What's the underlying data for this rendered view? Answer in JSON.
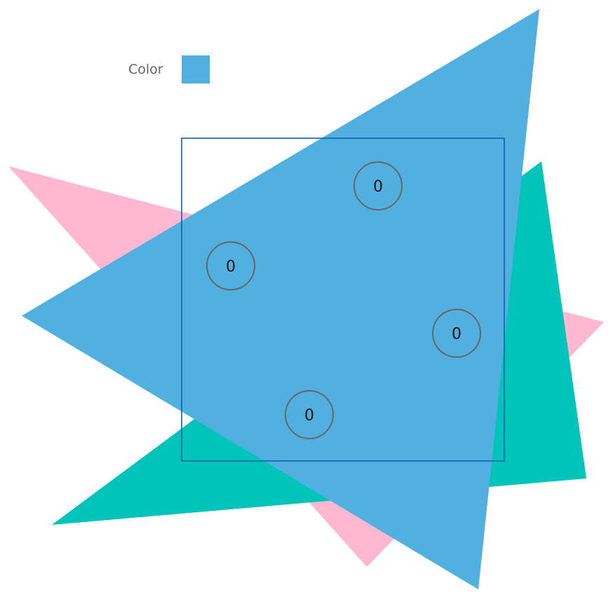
{
  "legend": {
    "label": "Color",
    "swatch_color": "#52b0e0"
  },
  "shapes": {
    "pink_triangle_color": "#ffb8cf",
    "teal_triangle_color": "#00c4ba",
    "blue_triangle_color": "#52b0e0",
    "selection_box_color": "#0f5fae"
  },
  "counters": [
    {
      "name": "counter-top",
      "value": "0"
    },
    {
      "name": "counter-left",
      "value": "0"
    },
    {
      "name": "counter-right",
      "value": "0"
    },
    {
      "name": "counter-bottom",
      "value": "0"
    }
  ]
}
